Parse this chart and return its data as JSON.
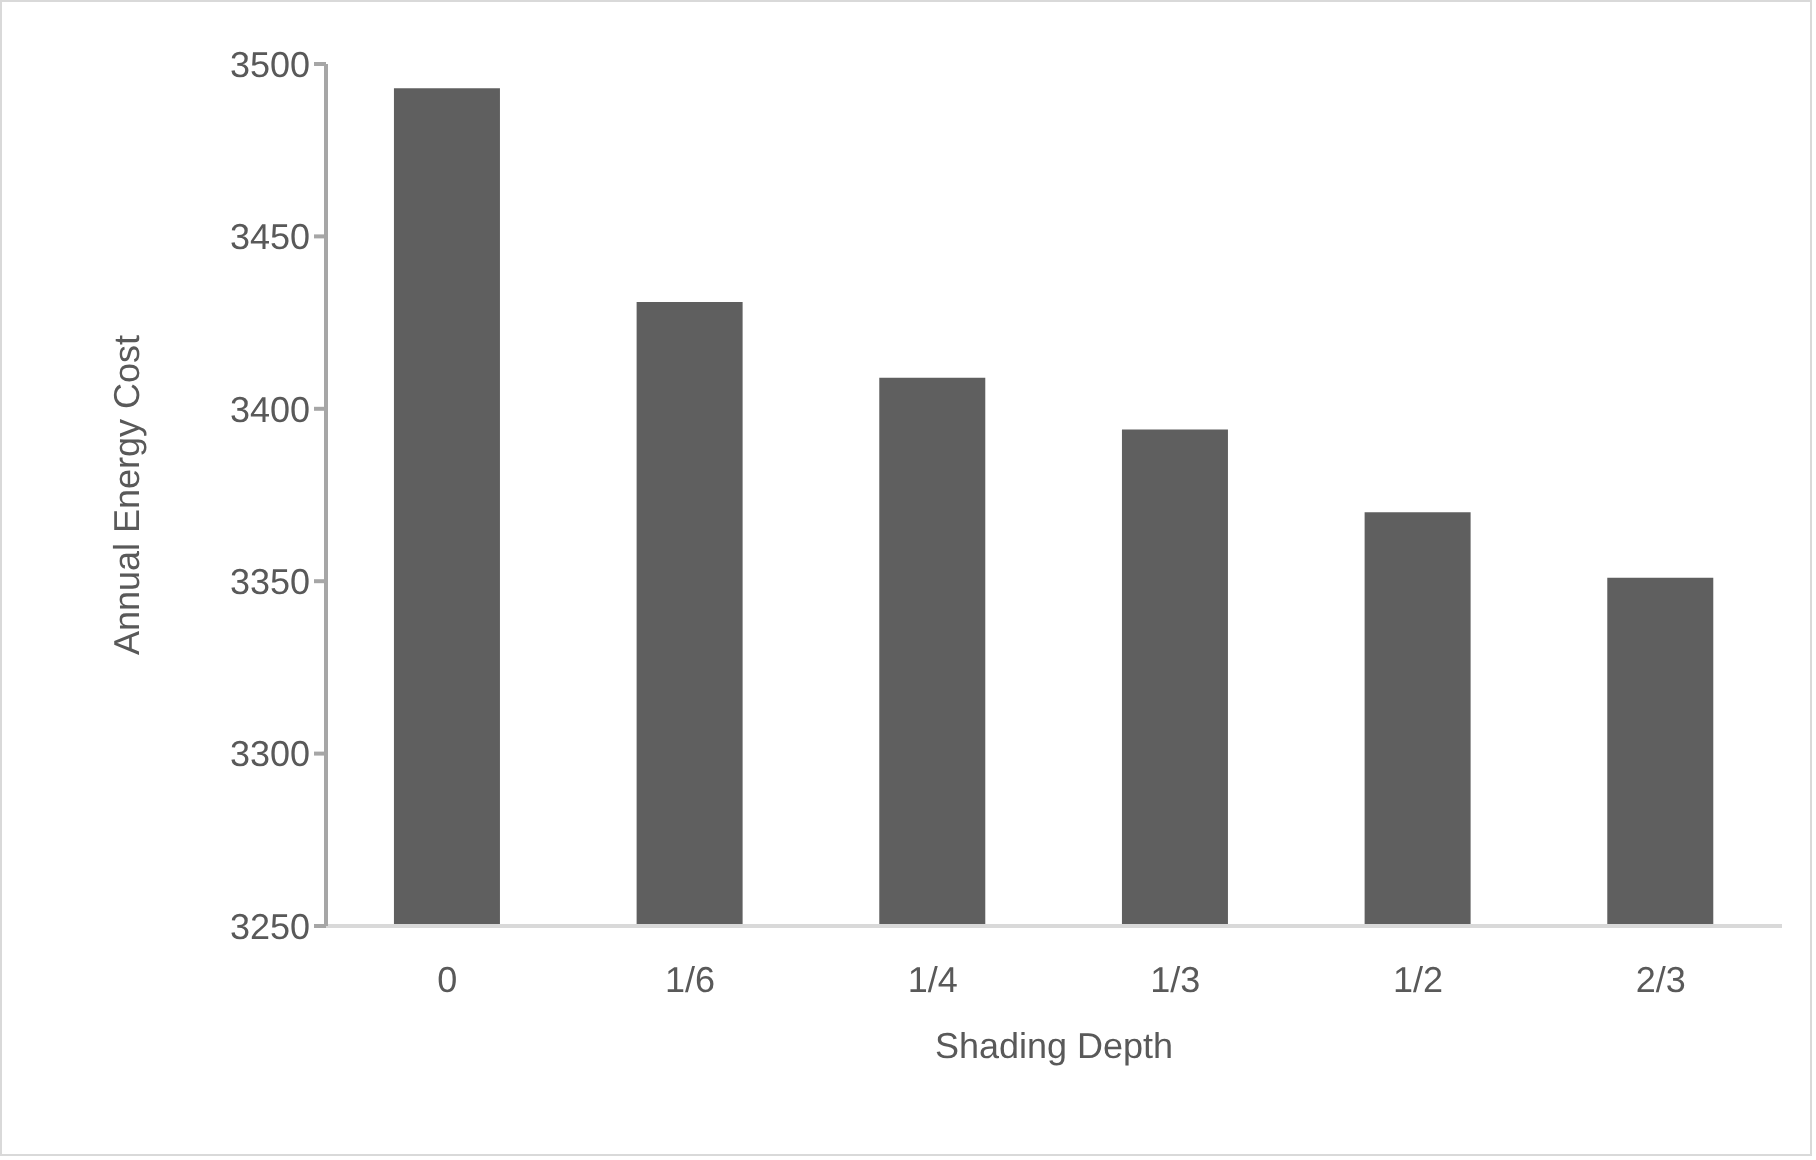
{
  "chart_data": {
    "type": "bar",
    "xlabel": "Shading Depth",
    "ylabel": "Annual Energy Cost",
    "categories": [
      "0",
      "1/6",
      "1/4",
      "1/3",
      "1/2",
      "2/3"
    ],
    "values": [
      3493,
      3431,
      3409,
      3394,
      3370,
      3351
    ],
    "color": "#5f5f5f",
    "ylim": [
      3250,
      3500
    ],
    "yticks": [
      3250,
      3300,
      3350,
      3400,
      3450,
      3500
    ],
    "grid": false,
    "legend": false
  }
}
